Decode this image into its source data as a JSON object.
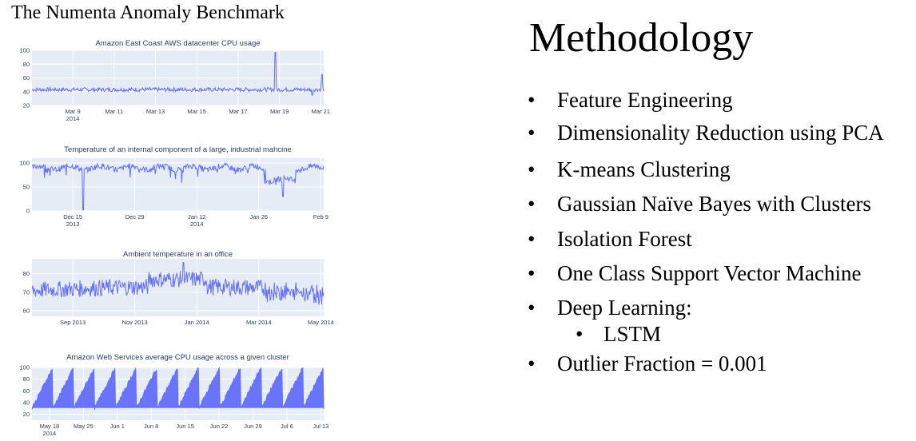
{
  "left_title": "The Numenta Anomaly Benchmark",
  "heading": "Methodology",
  "bullet_glyph": "•",
  "bullets": [
    "Feature Engineering",
    "Dimensionality Reduction using PCA",
    "K-means Clustering",
    "Gaussian Naïve Bayes with Clusters",
    "Isolation Forest",
    "One Class Support Vector Machine",
    "Deep Learning:",
    "LSTM",
    "Outlier Fraction = 0.001"
  ],
  "colors": {
    "plot_bg": "#e5ecf6",
    "line": "#636efa",
    "text": "#2a3f5f",
    "grid": "#ffffff"
  },
  "chart_data": [
    {
      "type": "line",
      "title": "Amazon East Coast AWS datacenter CPU usage",
      "ylim": [
        20,
        100
      ],
      "yticks": [
        "100",
        "80",
        "60",
        "40",
        "20"
      ],
      "xticks": [
        "Mar 9\n2014",
        "Mar 11",
        "Mar 13",
        "Mar 15",
        "Mar 17",
        "Mar 19",
        "Mar 21"
      ],
      "baseline": 43,
      "noise": 3,
      "floor": 28,
      "spikes": [
        {
          "at": 0.835,
          "value": 97
        },
        {
          "at": 0.96,
          "value": 35
        },
        {
          "at": 0.995,
          "value": 65
        }
      ],
      "series": [
        {
          "values_summary": "≈43 with spike to ≈97 near Mar 19"
        }
      ],
      "grid": true
    },
    {
      "type": "line",
      "title": "Temperature of an internal component of a large, industrial mahcine",
      "ylim": [
        0,
        110
      ],
      "yticks": [
        "100",
        "50",
        "0"
      ],
      "xticks": [
        "Dec 15\n2013",
        "Dec 29",
        "Jan 12\n2014",
        "Jan 26",
        "Feb 9"
      ],
      "baseline": 90,
      "noise": 6,
      "floor": 2,
      "spikes": [
        {
          "at": 0.175,
          "value": 2
        },
        {
          "at": 0.86,
          "value": 30
        }
      ],
      "series": [
        {
          "values_summary": "≈90 with dips to ≈2 near Dec 15 and ≈30 near Feb 9"
        }
      ],
      "grid": true
    },
    {
      "type": "line",
      "title": "Ambient temperature in an office",
      "ylim": [
        57,
        88
      ],
      "yticks": [
        "80",
        "70",
        "60"
      ],
      "xticks": [
        "Sep 2013",
        "Nov 2013",
        "Jan 2014",
        "Mar 2014",
        "May 2014"
      ],
      "baseline": 71,
      "noise": 3,
      "floor": 60,
      "spikes": [
        {
          "at": 0.52,
          "value": 86
        }
      ],
      "series": [
        {
          "values_summary": "≈71, peak ≈86 near Jan 2014, lows ≈60 in May 2014"
        }
      ],
      "grid": true
    },
    {
      "type": "area",
      "title": "Amazon Web Services average CPU usage across a given cluster",
      "ylim": [
        10,
        100
      ],
      "yticks": [
        "100",
        "80",
        "60",
        "40",
        "20"
      ],
      "xticks": [
        "May 18\n2014",
        "May 25",
        "Jun 1",
        "Jun 8",
        "Jun 15",
        "Jun 22",
        "Jun 29",
        "Jul 6",
        "Jul 13"
      ],
      "baseline": 32,
      "noise": 2,
      "floor": 15,
      "series": [
        {
          "values_summary": "sawtooth between ≈32 and ≈100"
        }
      ],
      "grid": true
    }
  ]
}
